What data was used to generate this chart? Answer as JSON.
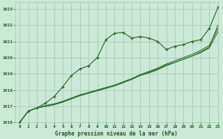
{
  "title": "Graphe pression niveau de la mer (hPa)",
  "background_color": "#cce8d8",
  "plot_bg_color": "#cce8d8",
  "grid_color": "#99c8aa",
  "text_color": "#1a5c1a",
  "xlim": [
    -0.5,
    23
  ],
  "ylim": [
    1016,
    1023.4
  ],
  "xticks": [
    0,
    1,
    2,
    3,
    4,
    5,
    6,
    7,
    8,
    9,
    10,
    11,
    12,
    13,
    14,
    15,
    16,
    17,
    18,
    19,
    20,
    21,
    22,
    23
  ],
  "yticks": [
    1016,
    1017,
    1018,
    1019,
    1020,
    1021,
    1022,
    1023
  ],
  "line_color": "#2d6e2d",
  "marker": "P",
  "marker_size": 2.5,
  "series_main": [
    1016.0,
    1016.7,
    1016.9,
    1017.2,
    1017.6,
    1018.2,
    1018.9,
    1019.3,
    1019.5,
    1020.0,
    1021.1,
    1021.5,
    1021.55,
    1021.2,
    1021.3,
    1021.2,
    1021.0,
    1020.5,
    1020.7,
    1020.8,
    1021.0,
    1021.1,
    1021.8,
    1023.1
  ],
  "series_line2": [
    1016.0,
    1016.7,
    1016.9,
    1017.0,
    1017.1,
    1017.3,
    1017.5,
    1017.7,
    1017.85,
    1018.0,
    1018.15,
    1018.3,
    1018.5,
    1018.7,
    1018.95,
    1019.1,
    1019.3,
    1019.55,
    1019.7,
    1019.9,
    1020.1,
    1020.35,
    1020.65,
    1022.0
  ],
  "series_line3": [
    1016.0,
    1016.7,
    1016.9,
    1017.05,
    1017.15,
    1017.3,
    1017.5,
    1017.7,
    1017.85,
    1018.0,
    1018.15,
    1018.3,
    1018.5,
    1018.7,
    1018.95,
    1019.15,
    1019.35,
    1019.6,
    1019.8,
    1020.0,
    1020.2,
    1020.45,
    1020.75,
    1021.8
  ],
  "series_line4": [
    1016.0,
    1016.7,
    1016.9,
    1017.0,
    1017.1,
    1017.25,
    1017.45,
    1017.65,
    1017.8,
    1017.95,
    1018.1,
    1018.25,
    1018.45,
    1018.65,
    1018.9,
    1019.05,
    1019.25,
    1019.5,
    1019.7,
    1019.9,
    1020.1,
    1020.3,
    1020.6,
    1021.6
  ]
}
